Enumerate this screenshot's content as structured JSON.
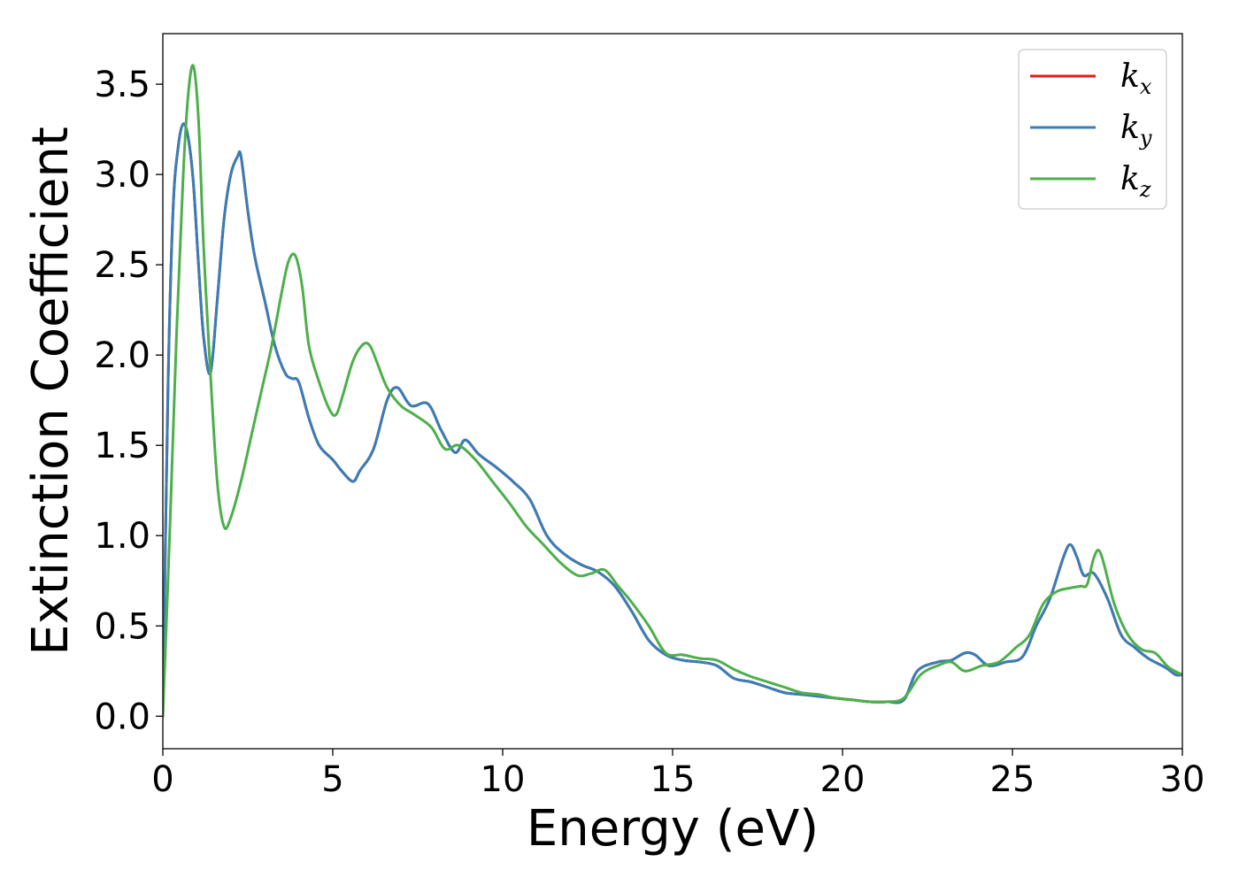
{
  "chart_data": {
    "type": "line",
    "title": "",
    "xlabel": "Energy (eV)",
    "ylabel": "Extinction Coefficient",
    "xlim": [
      0,
      30
    ],
    "ylim": [
      -0.18,
      3.78
    ],
    "xticks": [
      0,
      5,
      10,
      15,
      20,
      25,
      30
    ],
    "xtick_labels": [
      "0",
      "5",
      "10",
      "15",
      "20",
      "25",
      "30"
    ],
    "yticks": [
      0.0,
      0.5,
      1.0,
      1.5,
      2.0,
      2.5,
      3.0,
      3.5
    ],
    "ytick_labels": [
      "0.0",
      "0.5",
      "1.0",
      "1.5",
      "2.0",
      "2.5",
      "3.0",
      "3.5"
    ],
    "grid": false,
    "legend_position": "top-right",
    "series": [
      {
        "name": "k_x",
        "legend_base": "k",
        "legend_sub": "x",
        "color": "#e41a1c",
        "x": [
          0,
          0.15,
          0.3,
          0.45,
          0.6,
          0.75,
          0.9,
          1.05,
          1.2,
          1.4,
          1.6,
          1.8,
          2.0,
          2.2,
          2.3,
          2.5,
          2.7,
          3.0,
          3.3,
          3.6,
          3.8,
          4.0,
          4.3,
          4.6,
          5.0,
          5.3,
          5.6,
          5.8,
          6.2,
          6.6,
          6.9,
          7.3,
          7.8,
          8.2,
          8.6,
          8.9,
          9.3,
          9.8,
          10.3,
          10.8,
          11.3,
          11.8,
          12.3,
          12.8,
          13.3,
          13.8,
          14.3,
          14.8,
          15.3,
          15.8,
          16.3,
          16.8,
          17.3,
          17.8,
          18.3,
          18.8,
          19.3,
          19.8,
          20.3,
          20.8,
          21.3,
          21.8,
          22.2,
          22.8,
          23.2,
          23.6,
          23.9,
          24.3,
          24.8,
          25.3,
          25.7,
          26.1,
          26.5,
          26.7,
          26.9,
          27.1,
          27.4,
          27.8,
          28.2,
          28.6,
          29.0,
          29.5,
          29.8,
          30.0
        ],
        "y": [
          0.0,
          1.8,
          2.8,
          3.15,
          3.28,
          3.2,
          2.95,
          2.5,
          2.1,
          1.9,
          2.3,
          2.75,
          3.0,
          3.1,
          3.1,
          2.8,
          2.55,
          2.3,
          2.05,
          1.9,
          1.87,
          1.85,
          1.65,
          1.5,
          1.42,
          1.35,
          1.3,
          1.36,
          1.48,
          1.75,
          1.82,
          1.72,
          1.73,
          1.58,
          1.46,
          1.53,
          1.45,
          1.38,
          1.3,
          1.2,
          1.0,
          0.9,
          0.84,
          0.8,
          0.72,
          0.58,
          0.42,
          0.34,
          0.31,
          0.3,
          0.28,
          0.21,
          0.19,
          0.16,
          0.13,
          0.12,
          0.11,
          0.1,
          0.09,
          0.08,
          0.08,
          0.09,
          0.25,
          0.3,
          0.31,
          0.35,
          0.34,
          0.28,
          0.3,
          0.33,
          0.5,
          0.65,
          0.88,
          0.95,
          0.88,
          0.78,
          0.79,
          0.65,
          0.45,
          0.38,
          0.32,
          0.27,
          0.23,
          0.23
        ]
      },
      {
        "name": "k_y",
        "legend_base": "k",
        "legend_sub": "y",
        "color": "#377eb8",
        "x": [
          0,
          0.15,
          0.3,
          0.45,
          0.6,
          0.75,
          0.9,
          1.05,
          1.2,
          1.4,
          1.6,
          1.8,
          2.0,
          2.2,
          2.3,
          2.5,
          2.7,
          3.0,
          3.3,
          3.6,
          3.8,
          4.0,
          4.3,
          4.6,
          5.0,
          5.3,
          5.6,
          5.8,
          6.2,
          6.6,
          6.9,
          7.3,
          7.8,
          8.2,
          8.6,
          8.9,
          9.3,
          9.8,
          10.3,
          10.8,
          11.3,
          11.8,
          12.3,
          12.8,
          13.3,
          13.8,
          14.3,
          14.8,
          15.3,
          15.8,
          16.3,
          16.8,
          17.3,
          17.8,
          18.3,
          18.8,
          19.3,
          19.8,
          20.3,
          20.8,
          21.3,
          21.8,
          22.2,
          22.8,
          23.2,
          23.6,
          23.9,
          24.3,
          24.8,
          25.3,
          25.7,
          26.1,
          26.5,
          26.7,
          26.9,
          27.1,
          27.4,
          27.8,
          28.2,
          28.6,
          29.0,
          29.5,
          29.8,
          30.0
        ],
        "y": [
          0.0,
          1.8,
          2.8,
          3.15,
          3.28,
          3.2,
          2.95,
          2.5,
          2.1,
          1.9,
          2.3,
          2.75,
          3.0,
          3.1,
          3.1,
          2.8,
          2.55,
          2.3,
          2.05,
          1.9,
          1.87,
          1.85,
          1.65,
          1.5,
          1.42,
          1.35,
          1.3,
          1.36,
          1.48,
          1.75,
          1.82,
          1.72,
          1.73,
          1.58,
          1.46,
          1.53,
          1.45,
          1.38,
          1.3,
          1.2,
          1.0,
          0.9,
          0.84,
          0.8,
          0.72,
          0.58,
          0.42,
          0.34,
          0.31,
          0.3,
          0.28,
          0.21,
          0.19,
          0.16,
          0.13,
          0.12,
          0.11,
          0.1,
          0.09,
          0.08,
          0.08,
          0.09,
          0.25,
          0.3,
          0.31,
          0.35,
          0.34,
          0.28,
          0.3,
          0.33,
          0.5,
          0.65,
          0.88,
          0.95,
          0.88,
          0.78,
          0.79,
          0.65,
          0.45,
          0.38,
          0.32,
          0.27,
          0.23,
          0.23
        ]
      },
      {
        "name": "k_z",
        "legend_base": "k",
        "legend_sub": "z",
        "color": "#4daf4a",
        "x": [
          0,
          0.2,
          0.4,
          0.6,
          0.75,
          0.9,
          1.05,
          1.2,
          1.4,
          1.6,
          1.8,
          2.0,
          2.3,
          2.6,
          2.9,
          3.2,
          3.5,
          3.7,
          3.9,
          4.1,
          4.3,
          4.6,
          4.9,
          5.1,
          5.3,
          5.6,
          5.9,
          6.1,
          6.3,
          6.6,
          7.0,
          7.4,
          7.9,
          8.3,
          8.7,
          9.2,
          9.7,
          10.2,
          10.7,
          11.2,
          11.7,
          12.2,
          12.6,
          13.0,
          13.4,
          13.8,
          14.3,
          14.8,
          15.3,
          15.8,
          16.3,
          16.8,
          17.3,
          17.8,
          18.3,
          18.8,
          19.3,
          19.8,
          20.3,
          20.8,
          21.3,
          21.8,
          22.3,
          22.8,
          23.2,
          23.6,
          24.1,
          24.6,
          25.1,
          25.5,
          25.9,
          26.3,
          26.7,
          27.0,
          27.2,
          27.4,
          27.6,
          28.0,
          28.4,
          28.8,
          29.2,
          29.6,
          30.0
        ],
        "y": [
          0.0,
          1.0,
          2.1,
          3.0,
          3.45,
          3.6,
          3.3,
          2.6,
          1.9,
          1.3,
          1.05,
          1.1,
          1.3,
          1.55,
          1.8,
          2.05,
          2.35,
          2.52,
          2.55,
          2.38,
          2.05,
          1.85,
          1.7,
          1.67,
          1.78,
          1.97,
          2.06,
          2.05,
          1.96,
          1.82,
          1.72,
          1.67,
          1.6,
          1.48,
          1.5,
          1.42,
          1.3,
          1.18,
          1.05,
          0.95,
          0.85,
          0.78,
          0.79,
          0.81,
          0.72,
          0.63,
          0.5,
          0.35,
          0.34,
          0.32,
          0.31,
          0.26,
          0.22,
          0.19,
          0.16,
          0.13,
          0.12,
          0.1,
          0.09,
          0.08,
          0.08,
          0.1,
          0.23,
          0.28,
          0.3,
          0.25,
          0.28,
          0.3,
          0.38,
          0.45,
          0.62,
          0.69,
          0.71,
          0.72,
          0.73,
          0.88,
          0.9,
          0.62,
          0.45,
          0.37,
          0.35,
          0.27,
          0.23
        ]
      }
    ]
  }
}
